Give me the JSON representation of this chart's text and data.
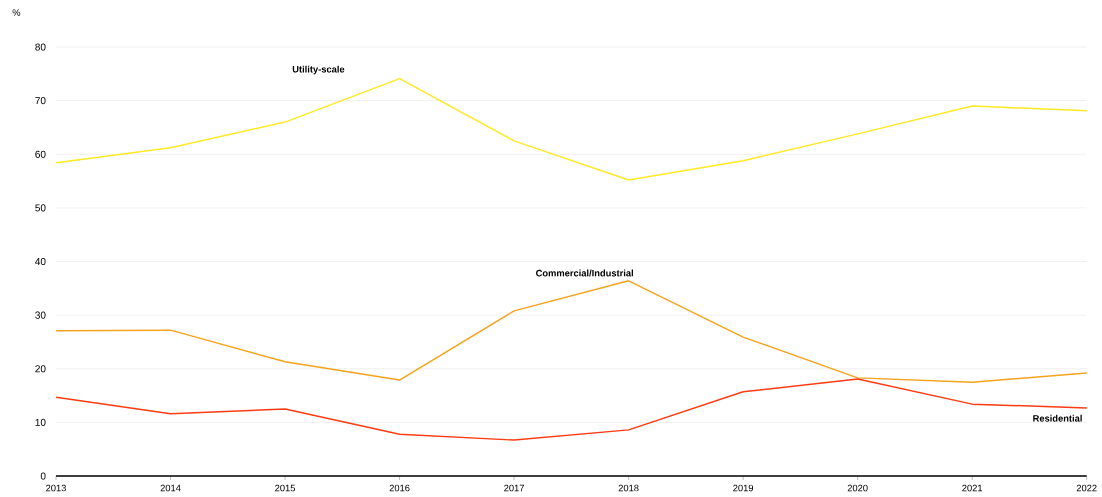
{
  "chart_data": {
    "type": "line",
    "ylabel": "%",
    "x": [
      2013,
      2014,
      2015,
      2016,
      2017,
      2018,
      2019,
      2020,
      2021,
      2022
    ],
    "xlim": [
      2013,
      2022
    ],
    "xticks": [
      2013,
      2014,
      2015,
      2016,
      2017,
      2018,
      2019,
      2020,
      2021,
      2022
    ],
    "ylim": [
      0,
      80
    ],
    "yticks": [
      0,
      10,
      20,
      30,
      40,
      50,
      60,
      70,
      80
    ],
    "grid": "y",
    "series": [
      {
        "name": "Utility-scale",
        "color": "#ffe824",
        "values": [
          58.4,
          61.2,
          66.0,
          74.1,
          62.5,
          55.2,
          58.8,
          63.8,
          69.0,
          68.1
        ]
      },
      {
        "name": "Commercial/Industrial",
        "color": "#f5a31c",
        "values": [
          27.1,
          27.2,
          21.3,
          17.9,
          30.8,
          36.4,
          25.9,
          18.3,
          17.5,
          19.2
        ]
      },
      {
        "name": "Residential",
        "color": "#ff3b12",
        "values": [
          14.7,
          11.6,
          12.5,
          7.8,
          6.7,
          8.6,
          15.7,
          18.1,
          13.4,
          12.7
        ]
      }
    ]
  }
}
